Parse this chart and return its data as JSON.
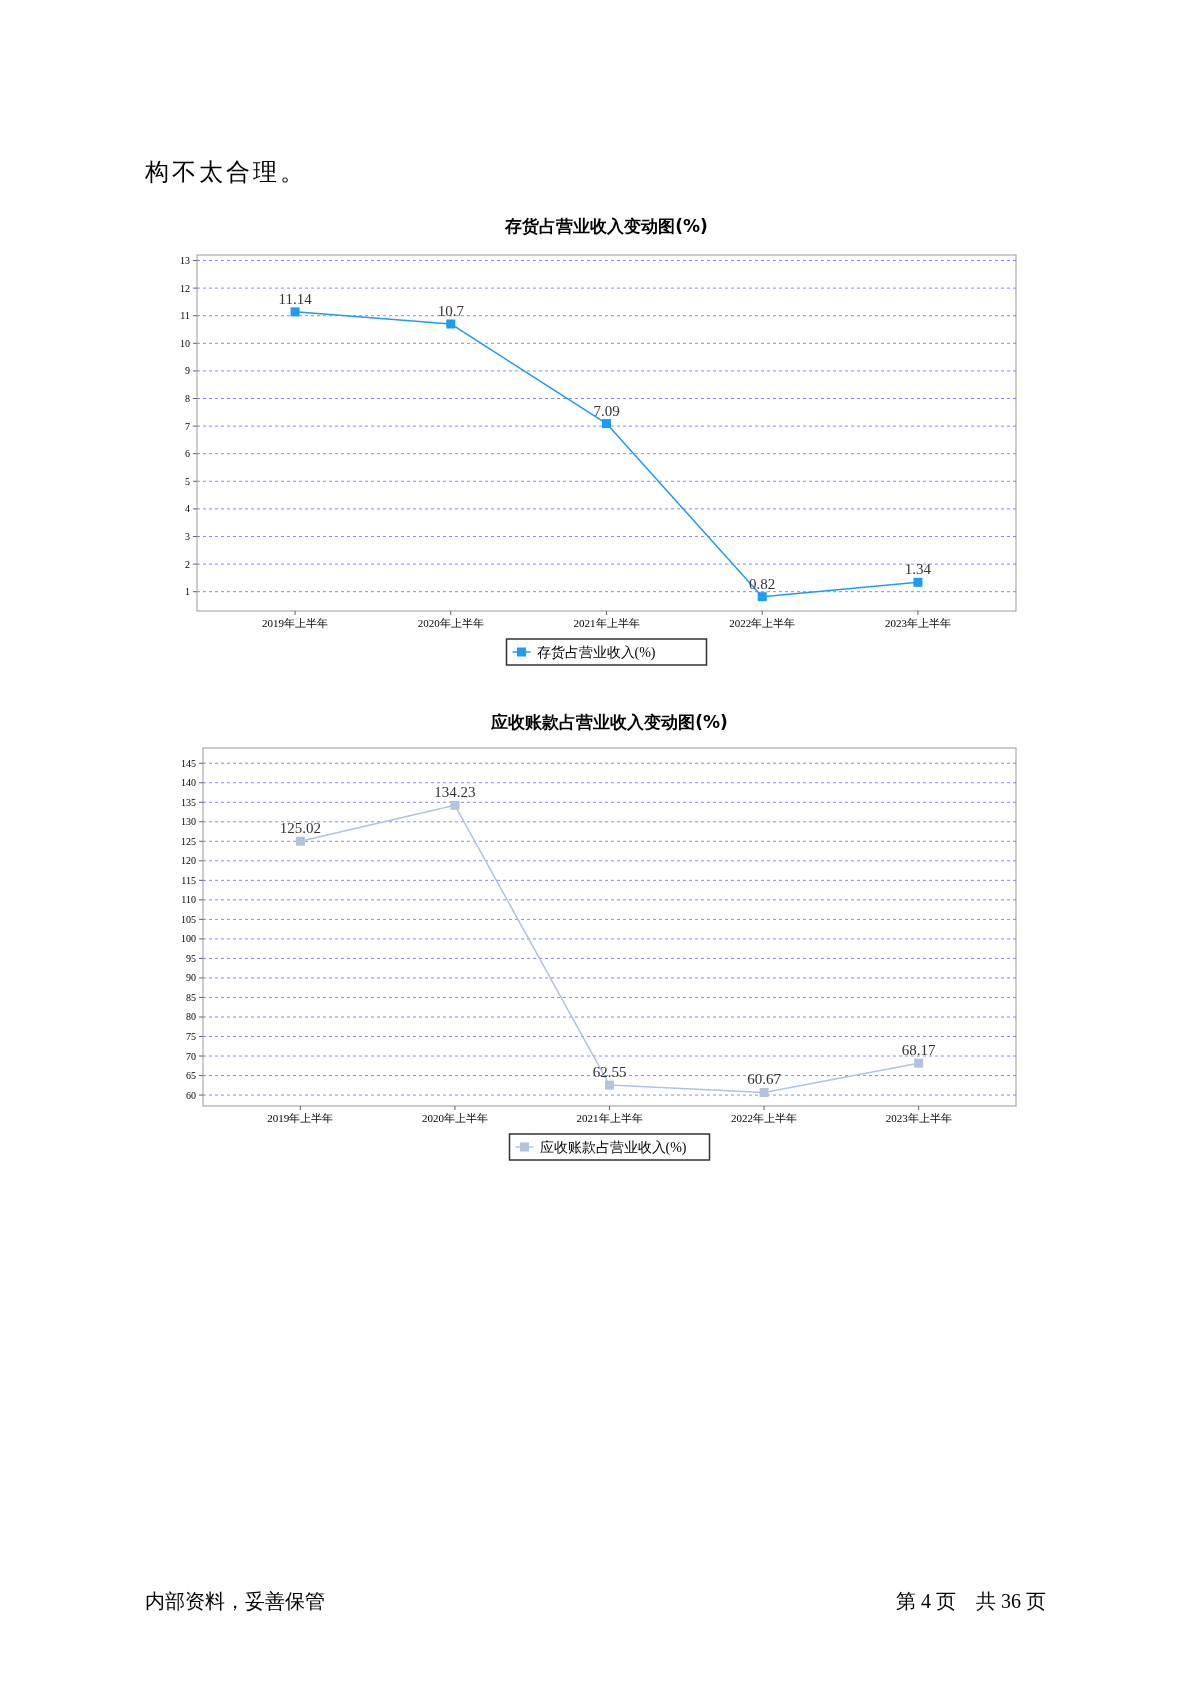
{
  "chart_data": [
    {
      "type": "line",
      "title": "存货占营业收入变动图(%)",
      "categories": [
        "2019年上半年",
        "2020年上半年",
        "2021年上半年",
        "2022年上半年",
        "2023年上半年"
      ],
      "series": [
        {
          "name": "存货占营业收入(%)",
          "color": "#1e9bf5",
          "values": [
            11.14,
            10.7,
            7.09,
            0.82,
            1.34
          ]
        }
      ],
      "ylim": [
        0.3,
        13.2
      ],
      "yticks": [
        1,
        2,
        3,
        4,
        5,
        6,
        7,
        8,
        9,
        10,
        11,
        12,
        13
      ],
      "grid": "y",
      "legend": "bottom",
      "marker": "square",
      "line_style": "solid",
      "data_labels": true,
      "annotations": [
        "构不太合理。"
      ]
    },
    {
      "type": "line",
      "title": "应收账款占营业收入变动图(%)",
      "categories": [
        "2019年上半年",
        "2020年上半年",
        "2021年上半年",
        "2022年上半年",
        "2023年上半年"
      ],
      "series": [
        {
          "name": "应收账款占营业收入(%)",
          "color": "#b0c4de",
          "values": [
            125.02,
            134.23,
            62.55,
            60.67,
            68.17
          ]
        }
      ],
      "ylim": [
        57.2,
        148.9
      ],
      "yticks": [
        60,
        65,
        70,
        75,
        80,
        85,
        90,
        95,
        100,
        105,
        110,
        115,
        120,
        125,
        130,
        135,
        140,
        145
      ],
      "grid": "y",
      "legend": "bottom",
      "marker": "square",
      "line_style": "solid",
      "data_labels": true,
      "annotations": [
        "内部资料，妥善保管",
        "第 4 页　共 36 页"
      ]
    }
  ]
}
